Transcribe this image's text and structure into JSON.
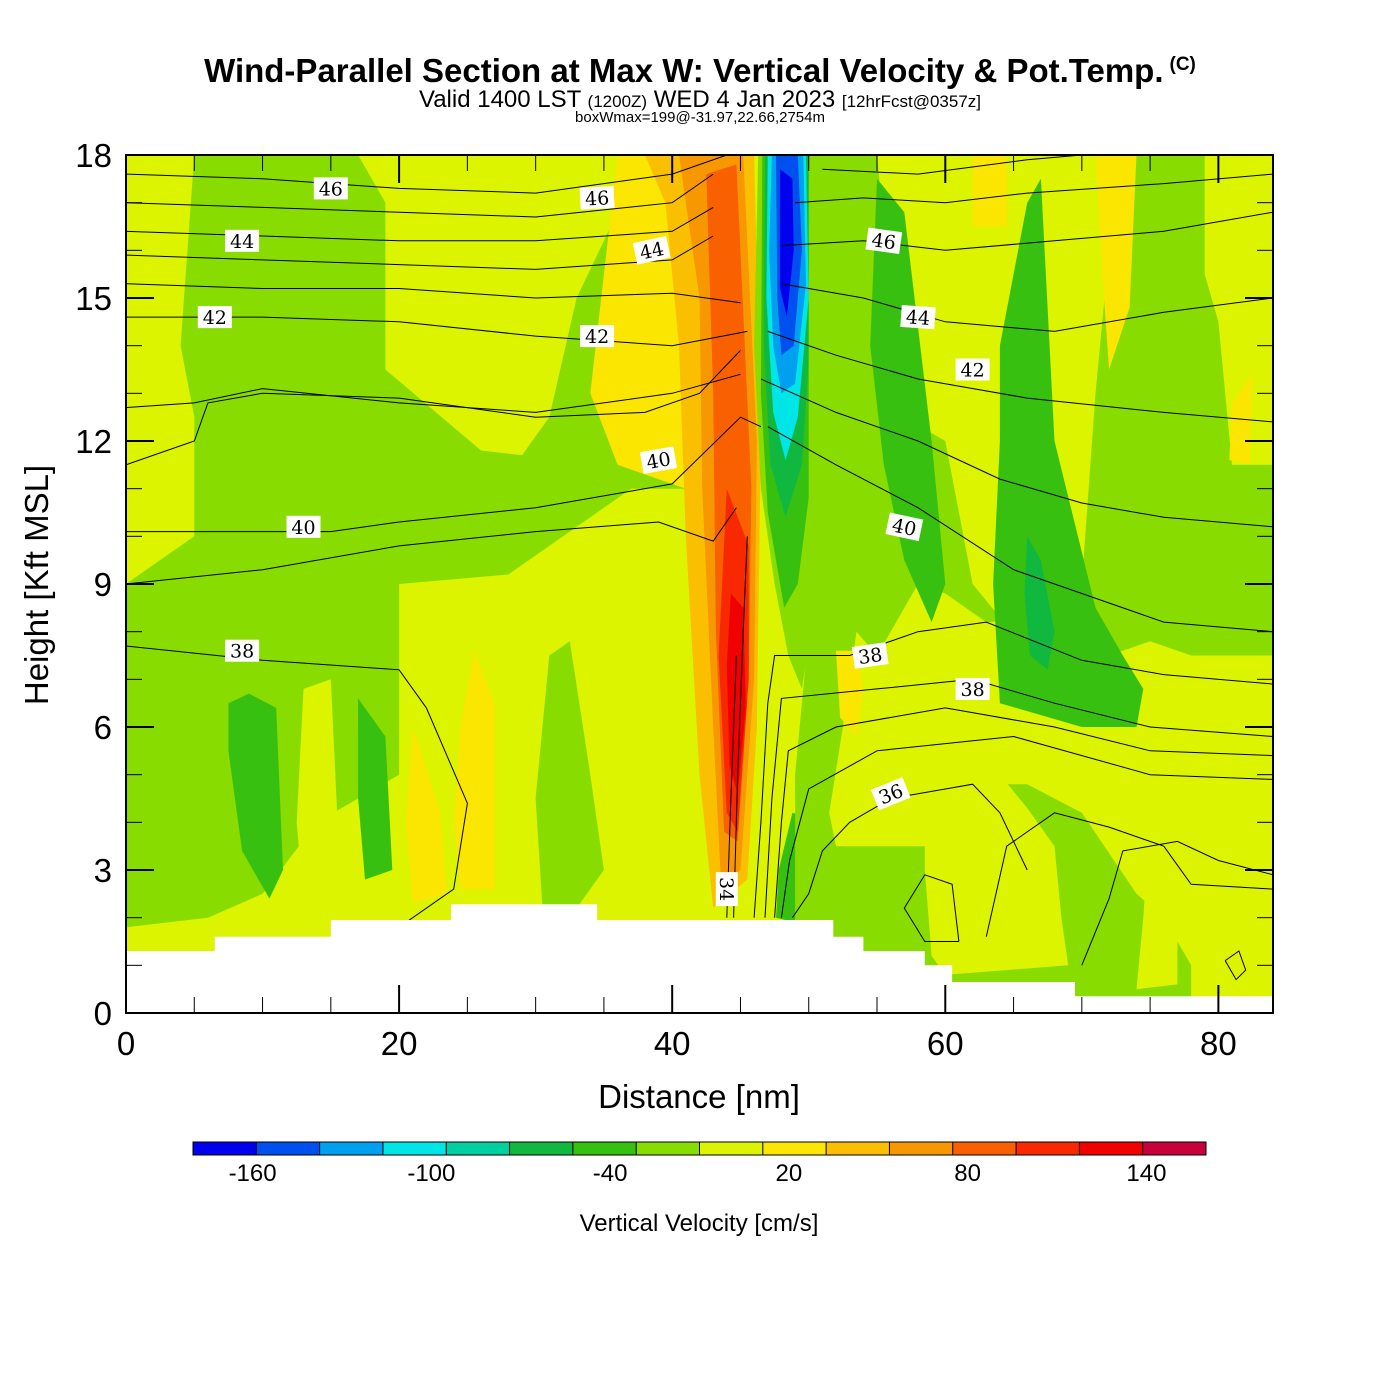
{
  "header": {
    "title": "Wind-Parallel Section at Max W: Vertical Velocity & Pot.Temp.",
    "copyright": "(C)",
    "subtitle_a": "Valid 1400 LST",
    "subtitle_b": "(1200Z)",
    "subtitle_c": "WED 4 Jan 2023",
    "subtitle_d": "[12hrFcst@0357z]",
    "subsub": "boxWmax=199@-31.97,22.66,2754m"
  },
  "chart_data": {
    "type": "heatmap",
    "title": "Wind-Parallel Section at Max W: Vertical Velocity & Pot.Temp.",
    "xlabel": "Distance [nm]",
    "ylabel": "Height [Kft MSL]",
    "xlim": [
      0,
      84
    ],
    "ylim": [
      0,
      18
    ],
    "x_ticks": [
      "0",
      "20",
      "40",
      "60",
      "80"
    ],
    "y_ticks": [
      "0",
      "3",
      "6",
      "9",
      "12",
      "15",
      "18"
    ],
    "colorbar": {
      "label": "Vertical Velocity [cm/s]",
      "tick_labels": [
        "-160",
        "-100",
        "-40",
        "20",
        "80",
        "140"
      ],
      "bounds": [
        -180,
        160
      ],
      "colors": [
        "#0000ee",
        "#0050f0",
        "#00a0f0",
        "#00e6e6",
        "#00d0a0",
        "#10b840",
        "#38c010",
        "#88dc00",
        "#dcf400",
        "#fae600",
        "#fac000",
        "#f89800",
        "#f86000",
        "#f82800",
        "#f00000",
        "#c8003c"
      ]
    },
    "contour_labels": [
      "46",
      "46",
      "46",
      "44",
      "44",
      "44",
      "42",
      "42",
      "42",
      "40",
      "40",
      "40",
      "38",
      "38",
      "38",
      "36",
      "34"
    ],
    "legend": "colorbar bottom"
  }
}
